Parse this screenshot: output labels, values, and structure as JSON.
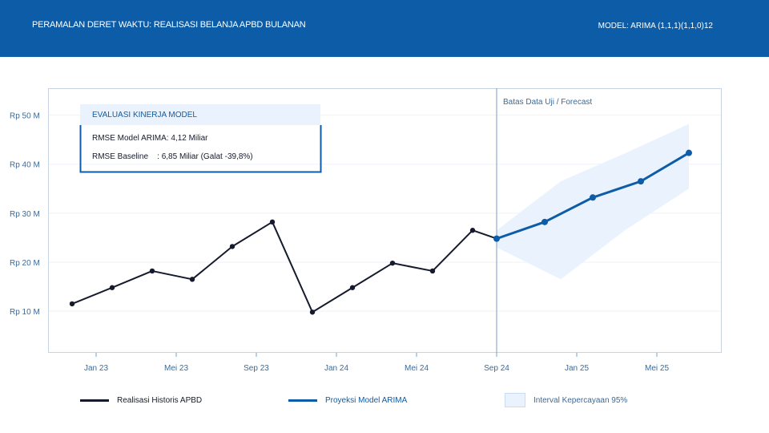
{
  "header": {
    "title": "PERAMALAN DERET WAKTU: REALISASI BELANJA APBD BULANAN",
    "model": "MODEL: ARIMA (1,1,1)(1,1,0)12"
  },
  "colors": {
    "header_bg": "#0d5ca8",
    "historical": "#151b2c",
    "forecast": "#0d5ca8",
    "interval": "#eaf3fd",
    "divider": "#7a9cc4"
  },
  "evaluation": {
    "title": "EVALUASI KINERJA MODEL",
    "arima_line": "RMSE Model ARIMA: 4,12 Miliar",
    "baseline_line": "RMSE Baseline    : 6,85 Miliar (Galat -39,8%)"
  },
  "annotation": "Batas Data Uji / Forecast",
  "legend": {
    "historical": "Realisasi Historis APBD",
    "forecast": "Proyeksi Model ARIMA",
    "interval": "Interval Kepercayaan 95%"
  },
  "chart_data": {
    "type": "line",
    "x_ticks": [
      "Jan 23",
      "Mei 23",
      "Sep 23",
      "Jan 24",
      "Mei 24",
      "Sep 24",
      "Jan 25",
      "Mei 25"
    ],
    "x_tick_months": [
      0,
      4,
      8,
      12,
      16,
      20,
      24,
      28
    ],
    "y_ticks": [
      "Rp 10 M",
      "Rp 20 M",
      "Rp 30 M",
      "Rp 40 M",
      "Rp 50 M"
    ],
    "y_tick_values": [
      10,
      20,
      30,
      40,
      50
    ],
    "xlim_months": [
      -2.4,
      31.2
    ],
    "ylim": [
      1.5,
      55.5
    ],
    "y_unit": "Rp Miliar",
    "grid": true,
    "series": [
      {
        "name": "Realisasi Historis APBD",
        "x_months": [
          -1.2,
          0.8,
          2.8,
          4.8,
          6.8,
          8.8,
          10.8,
          12.8,
          14.8,
          16.8,
          18.8,
          20.0
        ],
        "values": [
          11.5,
          14.8,
          18.2,
          16.5,
          23.2,
          28.2,
          9.8,
          14.8,
          19.8,
          18.2,
          26.5,
          24.8
        ]
      },
      {
        "name": "Proyeksi Model ARIMA",
        "x_months": [
          20.0,
          22.4,
          24.8,
          27.2,
          29.6
        ],
        "values": [
          24.8,
          28.2,
          33.2,
          36.5,
          42.3
        ]
      }
    ],
    "interval": {
      "name": "Interval Kepercayaan 95%",
      "x_months": [
        20.0,
        23.2,
        26.4,
        29.6
      ],
      "upper": [
        26.5,
        36.5,
        42.2,
        48.2
      ],
      "lower": [
        23.0,
        16.5,
        26.5,
        35.0
      ]
    },
    "forecast_start_month": 20.0
  }
}
